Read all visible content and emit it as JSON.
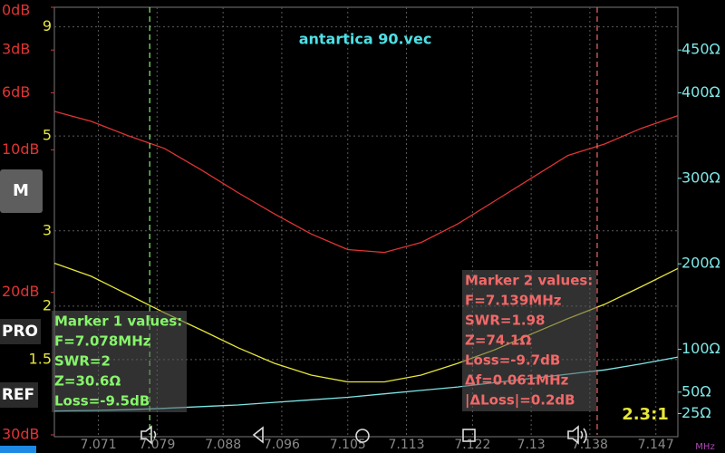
{
  "chart_data": {
    "type": "line",
    "title": "antartica 90.vec",
    "x": [
      7.065,
      7.07,
      7.075,
      7.08,
      7.085,
      7.09,
      7.095,
      7.1,
      7.105,
      7.11,
      7.115,
      7.12,
      7.125,
      7.13,
      7.135,
      7.14,
      7.145,
      7.15
    ],
    "xlim": [
      7.065,
      7.15
    ],
    "xticks": [
      7.071,
      7.079,
      7.088,
      7.096,
      7.105,
      7.113,
      7.122,
      7.13,
      7.138,
      7.147
    ],
    "x_label": "MHz",
    "yscale": "log",
    "ylim": [
      1,
      10
    ],
    "yticks": [
      1.5,
      2,
      3,
      5,
      9
    ],
    "y2lim": [
      0,
      500
    ],
    "y2ticks": [
      {
        "value": 25,
        "label": "25Ω"
      },
      {
        "value": 50,
        "label": "50Ω"
      },
      {
        "value": 100,
        "label": "100Ω"
      },
      {
        "value": 200,
        "label": "200Ω"
      },
      {
        "value": 300,
        "label": "300Ω"
      },
      {
        "value": 400,
        "label": "400Ω"
      },
      {
        "value": 450,
        "label": "450Ω"
      }
    ],
    "y3lim": [
      30,
      0
    ],
    "y3ticks": [
      {
        "value": 0,
        "label": "0dB"
      },
      {
        "value": 3,
        "label": "3dB"
      },
      {
        "value": 6,
        "label": "6dB"
      },
      {
        "value": 10,
        "label": "10dB"
      },
      {
        "value": 20,
        "label": "20dB"
      },
      {
        "value": 30,
        "label": "30dB"
      }
    ],
    "grid": true,
    "series": [
      {
        "axis": "y3",
        "color": "#e03434",
        "values": [
          7.3,
          8.0,
          9.0,
          9.9,
          11.4,
          13.0,
          14.5,
          15.9,
          17.0,
          17.2,
          16.5,
          15.2,
          13.6,
          12.0,
          10.4,
          9.6,
          8.5,
          7.6
        ]
      },
      {
        "axis": "y",
        "color": "#e6e63a",
        "values": [
          2.52,
          2.35,
          2.13,
          1.93,
          1.76,
          1.6,
          1.47,
          1.38,
          1.33,
          1.33,
          1.38,
          1.47,
          1.58,
          1.72,
          1.87,
          2.02,
          2.22,
          2.45
        ]
      },
      {
        "axis": "y2",
        "color": "#7ee6e6",
        "values": [
          28,
          28.5,
          29.5,
          31,
          33,
          35,
          38,
          41,
          44,
          48,
          52,
          56,
          61,
          66,
          71,
          76,
          83,
          91
        ]
      }
    ],
    "markers": [
      {
        "x": 7.078,
        "color": "#86f56a",
        "lines": [
          "Marker 1 values:",
          "F=7.078MHz",
          "SWR=2",
          "Z=30.6Ω",
          "Loss=-9.5dB"
        ]
      },
      {
        "x": 7.139,
        "color": "#f26868",
        "lines": [
          "Marker 2 values:",
          "F=7.139MHz",
          "SWR=1.98",
          "Z=74.1Ω",
          "Loss=-9.7dB",
          "Δf=0.061MHz",
          "|ΔLoss|=0.2dB"
        ]
      }
    ]
  },
  "buttons": {
    "m": "M",
    "pro": "PRO",
    "ref": "REF"
  },
  "swr_display": "2.3:1"
}
